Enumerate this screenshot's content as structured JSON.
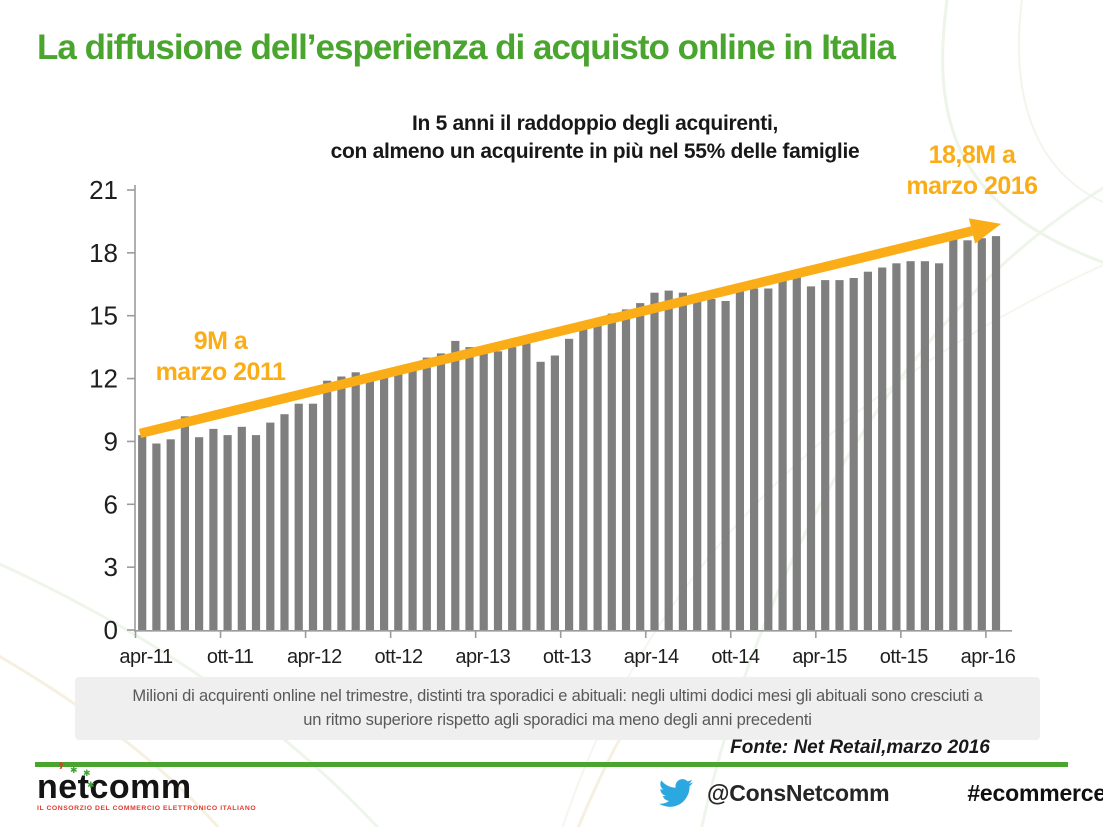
{
  "slide": {
    "title": "La diffusione dell’esperienza di acquisto online in Italia",
    "subtitle_line1": "In 5 anni il raddoppio degli acquirenti,",
    "subtitle_line2": "con almeno un acquirente in più nel 55% delle famiglie",
    "annotation_start": {
      "line1": "9M a",
      "line2": "marzo 2011"
    },
    "annotation_end": {
      "line1": "18,8M a",
      "line2": "marzo 2016"
    },
    "caption_line1": "Milioni di acquirenti online nel trimestre, distinti tra sporadici e abituali: negli ultimi dodici mesi gli abituali sono cresciuti a",
    "caption_line2": "un ritmo superiore rispetto agli sporadici ma meno degli anni precedenti",
    "source": "Fonte: Net Retail,marzo 2016",
    "footer": {
      "logo_text": "netcomm",
      "logo_tagline": "IL CONSORZIO DEL COMMERCIO ELETTRONICO ITALIANO",
      "twitter_handle": "@ConsNetcomm",
      "hashtag": "#ecommerceforum"
    }
  },
  "colors": {
    "title_green": "#4aa52e",
    "accent_orange": "#fbad18",
    "bar": "#7f7f7f",
    "axis": "#9b9b9b",
    "tick_label": "#1f1f1f",
    "caption_bg": "#efefef",
    "caption_text": "#595959",
    "twitter_blue": "#2ca8e0",
    "logo_red": "#e03a2f",
    "logo_star_green": "#3da435"
  },
  "chart_data": {
    "type": "bar",
    "title": "In 5 anni il raddoppio degli acquirenti, con almeno un acquirente in più nel 55% delle famiglie",
    "ylabel": "Milioni di acquirenti online nel trimestre",
    "ylim": [
      0,
      21
    ],
    "yticks": [
      0,
      3,
      6,
      9,
      12,
      15,
      18,
      21
    ],
    "grid": false,
    "legend": "none",
    "x_tick_labels": [
      "apr-11",
      "ott-11",
      "apr-12",
      "ott-12",
      "apr-13",
      "ott-13",
      "apr-14",
      "ott-14",
      "apr-15",
      "ott-15",
      "apr-16"
    ],
    "x": [
      "apr-11",
      "mag-11",
      "giu-11",
      "lug-11",
      "ago-11",
      "set-11",
      "ott-11",
      "nov-11",
      "dic-11",
      "gen-12",
      "feb-12",
      "mar-12",
      "apr-12",
      "mag-12",
      "giu-12",
      "lug-12",
      "ago-12",
      "set-12",
      "ott-12",
      "nov-12",
      "dic-12",
      "gen-13",
      "feb-13",
      "mar-13",
      "apr-13",
      "mag-13",
      "giu-13",
      "lug-13",
      "ago-13",
      "set-13",
      "ott-13",
      "nov-13",
      "dic-13",
      "gen-14",
      "feb-14",
      "mar-14",
      "apr-14",
      "mag-14",
      "giu-14",
      "lug-14",
      "ago-14",
      "set-14",
      "ott-14",
      "nov-14",
      "dic-14",
      "gen-15",
      "feb-15",
      "mar-15",
      "apr-15",
      "mag-15",
      "giu-15",
      "lug-15",
      "ago-15",
      "set-15",
      "ott-15",
      "nov-15",
      "dic-15",
      "gen-16",
      "feb-16",
      "mar-16",
      "apr-16"
    ],
    "values": [
      9.3,
      8.9,
      9.1,
      10.2,
      9.2,
      9.6,
      9.3,
      9.7,
      9.3,
      9.9,
      10.3,
      10.8,
      10.8,
      11.9,
      12.1,
      12.3,
      12.2,
      12.2,
      12.3,
      12.4,
      13.0,
      13.2,
      13.8,
      13.5,
      13.3,
      13.3,
      13.5,
      13.7,
      12.8,
      13.1,
      13.9,
      14.4,
      14.8,
      15.1,
      15.3,
      15.6,
      16.1,
      16.2,
      16.1,
      15.8,
      15.8,
      15.7,
      16.2,
      16.3,
      16.3,
      17.0,
      16.9,
      16.4,
      16.7,
      16.7,
      16.8,
      17.1,
      17.3,
      17.5,
      17.6,
      17.6,
      17.5,
      18.7,
      18.6,
      18.7,
      18.8
    ],
    "trend_arrow": {
      "from_label": "9M a marzo 2011",
      "from_value": 9,
      "to_label": "18,8M a marzo 2016",
      "to_value": 18.8
    }
  }
}
